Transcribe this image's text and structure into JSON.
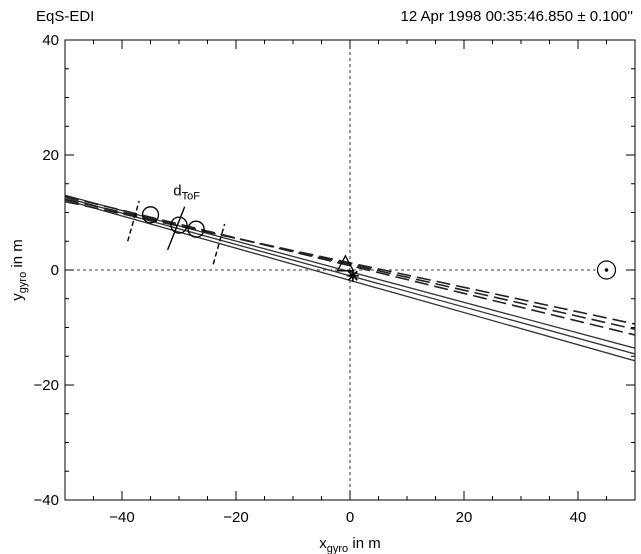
{
  "header": {
    "left": "EqS-EDI",
    "right": "12 Apr 1998 00:35:46.850 ± 0.100''"
  },
  "chart_data": {
    "type": "line",
    "title": "",
    "xlabel": {
      "main": "x",
      "sub": "gyro",
      "rest": " in m"
    },
    "ylabel": {
      "main": "y",
      "sub": "gyro",
      "rest": " in m"
    },
    "xlim": [
      -50,
      50
    ],
    "ylim": [
      -40,
      40
    ],
    "xticks": [
      -40,
      -20,
      0,
      20,
      40
    ],
    "yticks": [
      -40,
      -20,
      0,
      20,
      40
    ],
    "xtick_labels": [
      "−40",
      "−20",
      "0",
      "20",
      "40"
    ],
    "ytick_labels": [
      "−40",
      "−20",
      "0",
      "20",
      "40"
    ],
    "minor_step": 5,
    "grid": false,
    "solid_lines": [
      {
        "x": [
          -50,
          50
        ],
        "y": [
          12.2,
          -15.8
        ]
      },
      {
        "x": [
          -50,
          50
        ],
        "y": [
          12.6,
          -14.6
        ]
      },
      {
        "x": [
          -50,
          50
        ],
        "y": [
          13.0,
          -13.6
        ]
      }
    ],
    "dashed_lines": [
      {
        "x": [
          -50,
          50
        ],
        "y": [
          11.9,
          -9.4
        ]
      },
      {
        "x": [
          -50,
          50
        ],
        "y": [
          12.3,
          -10.3
        ]
      },
      {
        "x": [
          -50,
          50
        ],
        "y": [
          12.8,
          -11.3
        ]
      }
    ],
    "circles": [
      {
        "x": -35,
        "y": 9.6
      },
      {
        "x": -30,
        "y": 7.8
      },
      {
        "x": -27,
        "y": 7.1
      }
    ],
    "arcs": [
      {
        "style": "dashed",
        "x": [
          -39,
          -37
        ],
        "y": [
          5,
          12
        ]
      },
      {
        "style": "solid",
        "x": [
          -32,
          -29
        ],
        "y": [
          3.5,
          11
        ]
      },
      {
        "style": "dashed",
        "x": [
          -24,
          -22
        ],
        "y": [
          1,
          8
        ]
      }
    ],
    "arc_label": {
      "main": "d",
      "sub": "ToF",
      "x": -31,
      "y": 13
    },
    "triangle": {
      "x": -0.8,
      "y": 0.9
    },
    "star": {
      "x": 0.5,
      "y": -1.0
    },
    "target_symbol": {
      "x": 45,
      "y": 0
    }
  }
}
